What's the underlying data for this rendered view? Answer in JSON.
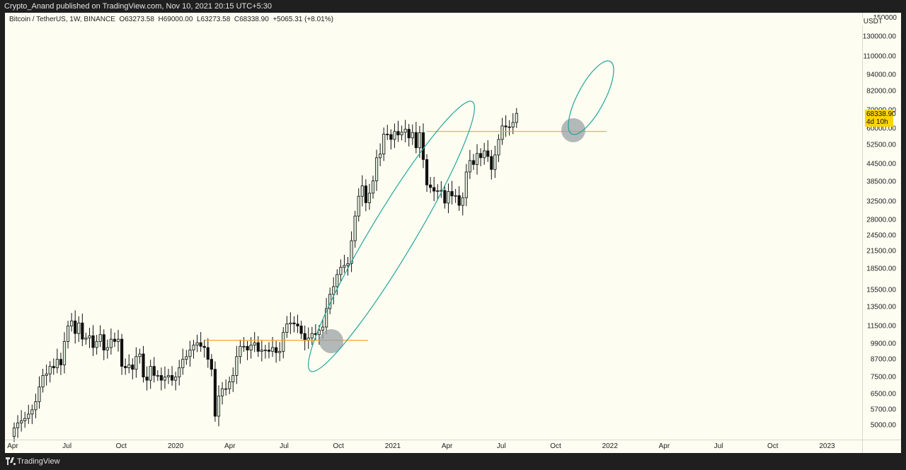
{
  "header": {
    "publisher_text": "Crypto_Anand published on TradingView.com, Nov 10, 2021 20:15 UTC+5:30"
  },
  "legend": {
    "symbol": "Bitcoin / TetherUS, 1W, BINANCE",
    "open": "O63273.58",
    "high": "H69000.00",
    "low": "L63273.58",
    "close": "C68338.90",
    "change": "+5065.31 (+8.01%)"
  },
  "price_axis": {
    "unit": "USDT",
    "top_partial": "150000",
    "ticks": [
      "130000.00",
      "110000.00",
      "94000.00",
      "82000.00",
      "70000.00",
      "60000.00",
      "52500.00",
      "44500.00",
      "38500.00",
      "32500.00",
      "28000.00",
      "24500.00",
      "21500.00",
      "18500.00",
      "15500.00",
      "13500.00",
      "11500.00",
      "9900.00",
      "8700.00",
      "7500.00",
      "6500.00",
      "5700.00",
      "5000.00"
    ],
    "last_price": "68338.90",
    "countdown": "4d 10h"
  },
  "time_axis": {
    "ticks": [
      "Apr",
      "Jul",
      "Oct",
      "2020",
      "Apr",
      "Jul",
      "Oct",
      "2021",
      "Apr",
      "Jul",
      "Oct",
      "2022",
      "Apr",
      "Jul",
      "Oct",
      "2023"
    ]
  },
  "footer": {
    "brand": "TradingView"
  },
  "colors": {
    "up_fill": "#d7e8d3",
    "down_fill": "#111111",
    "candle_outline": "#111111",
    "support_line": "#f5a623",
    "ellipse": "#26a69a",
    "highlight_circle": "#9aa0a6",
    "price_tag": "#ffd500"
  },
  "chart_data": {
    "type": "candlestick",
    "symbol": "Bitcoin / TetherUS",
    "interval": "1W",
    "exchange": "BINANCE",
    "y_scale": "log",
    "ylim": [
      4500,
      150000
    ],
    "x_ticks": [
      "Apr",
      "Jul",
      "Oct",
      "2020",
      "Apr",
      "Jul",
      "Oct",
      "2021",
      "Apr",
      "Jul",
      "Oct",
      "2022",
      "Apr",
      "Jul",
      "Oct",
      "2023"
    ],
    "weekly_closes": [
      4900,
      5100,
      5200,
      5300,
      5500,
      5700,
      6100,
      6900,
      7600,
      7700,
      8200,
      8100,
      8700,
      8300,
      10100,
      11500,
      12000,
      10800,
      11800,
      10300,
      10400,
      10600,
      9600,
      10100,
      10700,
      9400,
      9600,
      10300,
      10100,
      10300,
      8200,
      8100,
      8300,
      8000,
      8900,
      9100,
      7500,
      7300,
      8200,
      7600,
      7600,
      7300,
      7500,
      7600,
      7300,
      7500,
      8100,
      8700,
      8900,
      9400,
      9800,
      10000,
      9700,
      9600,
      8700,
      8000,
      5400,
      6400,
      6800,
      6800,
      7200,
      7600,
      8900,
      9700,
      9700,
      9400,
      9800,
      10000,
      9300,
      9400,
      9400,
      9300,
      9600,
      9200,
      9300,
      10900,
      11700,
      11800,
      11700,
      11500,
      10800,
      10200,
      10400,
      10800,
      10700,
      11100,
      11400,
      13300,
      15000,
      16000,
      17700,
      18800,
      19100,
      19400,
      23500,
      28900,
      34100,
      37200,
      32300,
      35000,
      38800,
      47100,
      48600,
      57400,
      57200,
      54900,
      58700,
      57000,
      58300,
      59800,
      55600,
      58200,
      51200,
      58100,
      46400,
      37500,
      36700,
      35600,
      35700,
      35800,
      32200,
      35500,
      34200,
      34300,
      31600,
      33700,
      41800,
      46000,
      44500,
      48800,
      47100,
      49900,
      47600,
      42700,
      48200,
      54900,
      61500,
      61000,
      60900,
      63300,
      68300
    ],
    "support_levels": [
      10200,
      58700
    ],
    "last_close": 68338.9,
    "annotations": [
      "ellipse highlighting Sep 2020 – Apr 2021 rally",
      "ellipse projecting upside after Nov 2021 breakout",
      "circle at 2020 breakout retest",
      "circle at 2021 breakout retest"
    ]
  }
}
